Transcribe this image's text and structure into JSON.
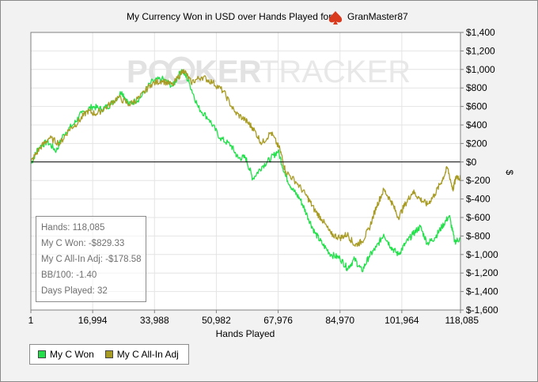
{
  "chart_data": {
    "type": "line",
    "title": "My Currency Won in USD over Hands Played for",
    "player": "GranMaster87",
    "xlabel": "Hands Played",
    "ylabel": "$",
    "xlim": [
      1,
      118085
    ],
    "ylim": [
      -1600,
      1400
    ],
    "x_ticks": [
      1,
      16994,
      33988,
      50982,
      67976,
      84970,
      101964,
      118085
    ],
    "x_tick_labels": [
      "1",
      "16,994",
      "33,988",
      "50,982",
      "67,976",
      "84,970",
      "101,964",
      "118,085"
    ],
    "y_ticks": [
      1400,
      1200,
      1000,
      800,
      600,
      400,
      200,
      0,
      -200,
      -400,
      -600,
      -800,
      -1000,
      -1200,
      -1400,
      -1600
    ],
    "y_tick_labels": [
      "$1,400",
      "$1,200",
      "$1,000",
      "$800",
      "$600",
      "$400",
      "$200",
      "$0",
      "$-200",
      "$-400",
      "$-600",
      "$-800",
      "$-1,000",
      "$-1,200",
      "$-1,400",
      "$-1,600"
    ],
    "grid": true,
    "legend_position": "bottom-left",
    "series": [
      {
        "name": "My C Won",
        "color": "#22e04a",
        "points": [
          [
            1,
            -20
          ],
          [
            2000,
            150
          ],
          [
            4500,
            220
          ],
          [
            7000,
            120
          ],
          [
            9000,
            300
          ],
          [
            12000,
            420
          ],
          [
            14000,
            530
          ],
          [
            17000,
            600
          ],
          [
            19500,
            570
          ],
          [
            22000,
            620
          ],
          [
            25000,
            760
          ],
          [
            27000,
            620
          ],
          [
            30000,
            690
          ],
          [
            33000,
            860
          ],
          [
            36000,
            900
          ],
          [
            39000,
            820
          ],
          [
            41500,
            1000
          ],
          [
            43500,
            860
          ],
          [
            46000,
            590
          ],
          [
            49000,
            460
          ],
          [
            52000,
            260
          ],
          [
            55000,
            180
          ],
          [
            57000,
            40
          ],
          [
            59000,
            50
          ],
          [
            61000,
            -180
          ],
          [
            63500,
            -50
          ],
          [
            66000,
            40
          ],
          [
            67976,
            120
          ],
          [
            70000,
            -150
          ],
          [
            72000,
            -300
          ],
          [
            74000,
            -400
          ],
          [
            76000,
            -580
          ],
          [
            78000,
            -760
          ],
          [
            80000,
            -880
          ],
          [
            82500,
            -1000
          ],
          [
            84970,
            -1040
          ],
          [
            87000,
            -1150
          ],
          [
            89000,
            -1050
          ],
          [
            91000,
            -1180
          ],
          [
            93000,
            -1020
          ],
          [
            95000,
            -920
          ],
          [
            97000,
            -780
          ],
          [
            99000,
            -920
          ],
          [
            101000,
            -1000
          ],
          [
            103000,
            -880
          ],
          [
            105000,
            -780
          ],
          [
            107000,
            -700
          ],
          [
            109000,
            -880
          ],
          [
            111000,
            -820
          ],
          [
            113000,
            -700
          ],
          [
            115000,
            -580
          ],
          [
            116500,
            -860
          ],
          [
            118085,
            -829
          ]
        ]
      },
      {
        "name": "My C All-In Adj",
        "color": "#a89b23",
        "points": [
          [
            1,
            0
          ],
          [
            2500,
            150
          ],
          [
            5000,
            260
          ],
          [
            8000,
            200
          ],
          [
            10500,
            350
          ],
          [
            13000,
            430
          ],
          [
            15500,
            550
          ],
          [
            18000,
            520
          ],
          [
            21000,
            600
          ],
          [
            24000,
            700
          ],
          [
            27000,
            620
          ],
          [
            30000,
            700
          ],
          [
            33000,
            840
          ],
          [
            36000,
            880
          ],
          [
            39000,
            830
          ],
          [
            42000,
            1000
          ],
          [
            44000,
            860
          ],
          [
            47000,
            920
          ],
          [
            50000,
            860
          ],
          [
            53000,
            760
          ],
          [
            56000,
            540
          ],
          [
            59000,
            450
          ],
          [
            61000,
            370
          ],
          [
            63500,
            200
          ],
          [
            66000,
            320
          ],
          [
            68500,
            130
          ],
          [
            70000,
            -100
          ],
          [
            73000,
            -220
          ],
          [
            76000,
            -380
          ],
          [
            78000,
            -520
          ],
          [
            80000,
            -620
          ],
          [
            82500,
            -780
          ],
          [
            85000,
            -820
          ],
          [
            87000,
            -780
          ],
          [
            89000,
            -900
          ],
          [
            91000,
            -860
          ],
          [
            93000,
            -720
          ],
          [
            95000,
            -480
          ],
          [
            97000,
            -300
          ],
          [
            99000,
            -420
          ],
          [
            101000,
            -600
          ],
          [
            103000,
            -450
          ],
          [
            105000,
            -320
          ],
          [
            107000,
            -400
          ],
          [
            109000,
            -460
          ],
          [
            111000,
            -350
          ],
          [
            113000,
            -200
          ],
          [
            114500,
            -60
          ],
          [
            116000,
            -300
          ],
          [
            117000,
            -150
          ],
          [
            118085,
            -179
          ]
        ]
      }
    ]
  },
  "stats": {
    "hands": "Hands: 118,085",
    "won": "My C Won: -$829.33",
    "allin": "My C All-In Adj: -$178.58",
    "bb100": "BB/100: -1.40",
    "days": "Days Played: 32"
  },
  "legend": {
    "won_label": "My C Won",
    "allin_label": "My C All-In Adj"
  },
  "watermark": {
    "text_left": "PO",
    "text_mid": "KER",
    "text_right": "TRACKER",
    "icon": "spade-icon"
  }
}
